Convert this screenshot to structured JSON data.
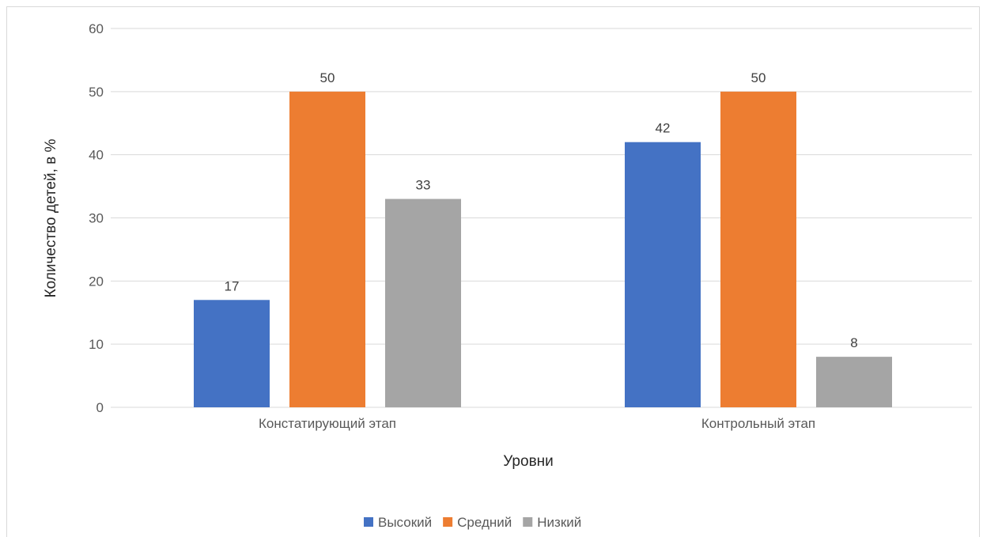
{
  "chart_data": {
    "type": "bar",
    "categories": [
      "Констатирующий этап",
      "Контрольный этап"
    ],
    "series": [
      {
        "name": "Высокий",
        "values": [
          17,
          42
        ],
        "color": "#4472C4"
      },
      {
        "name": "Средний",
        "values": [
          50,
          50
        ],
        "color": "#ED7D31"
      },
      {
        "name": "Низкий",
        "values": [
          33,
          8
        ],
        "color": "#A5A5A5"
      }
    ],
    "xlabel": "Уровни",
    "ylabel": "Количество детей, в %",
    "ylim": [
      0,
      60
    ],
    "yticks": [
      0,
      10,
      20,
      30,
      40,
      50,
      60
    ],
    "grid": true,
    "legend": "bottom",
    "data_labels": true
  }
}
